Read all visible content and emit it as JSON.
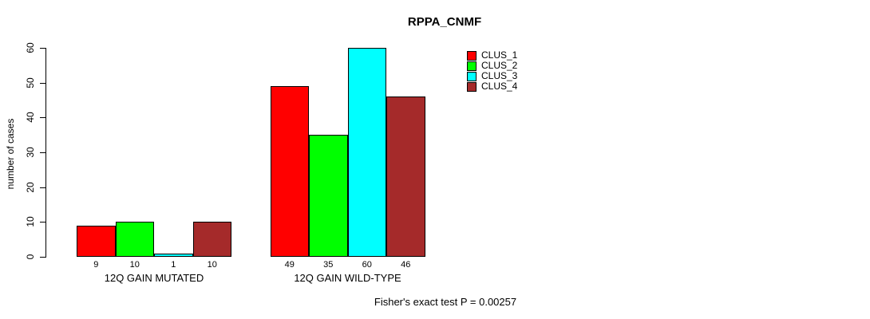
{
  "caption": "Fisher's exact test P = 0.00257",
  "chart_data": {
    "type": "bar",
    "title": "RPPA_CNMF",
    "xlabel": "",
    "ylabel": "number of cases",
    "ylim": [
      0,
      60
    ],
    "yticks": [
      0,
      10,
      20,
      30,
      40,
      50,
      60
    ],
    "grid": false,
    "legend_position": "top-right",
    "categories": [
      "12Q GAIN MUTATED",
      "12Q GAIN WILD-TYPE"
    ],
    "series": [
      {
        "name": "CLUS_1",
        "color": "#FF0000",
        "values": [
          9,
          49
        ]
      },
      {
        "name": "CLUS_2",
        "color": "#00FF00",
        "values": [
          10,
          35
        ]
      },
      {
        "name": "CLUS_3",
        "color": "#00FFFF",
        "values": [
          1,
          60
        ]
      },
      {
        "name": "CLUS_4",
        "color": "#A52A2A",
        "values": [
          10,
          46
        ]
      }
    ]
  }
}
